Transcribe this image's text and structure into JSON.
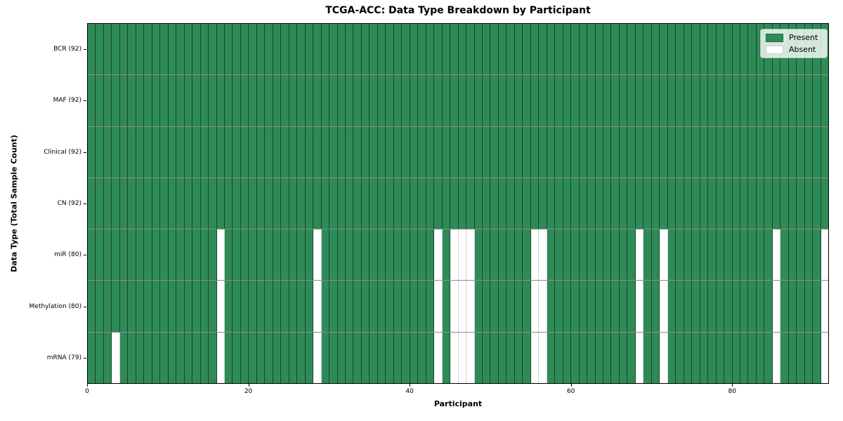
{
  "figure": {
    "title": "TCGA-ACC: Data Type Breakdown by Participant",
    "xlabel": "Participant",
    "ylabel": "Data Type (Total Sample Count)"
  },
  "legend": {
    "present_label": "Present",
    "absent_label": "Absent"
  },
  "colors": {
    "present": "#2E8B57",
    "absent": "#FFFFFF",
    "grid_line": "rgba(0,0,0,0.5)",
    "spine": "#000000"
  },
  "chart_data": {
    "type": "heatmap",
    "title": "TCGA-ACC: Data Type Breakdown by Participant",
    "xlabel": "Participant",
    "ylabel": "Data Type (Total Sample Count)",
    "n_participants": 92,
    "x_range": [
      0,
      92
    ],
    "x_ticks": [
      0,
      20,
      40,
      60,
      80
    ],
    "legend_entries": [
      "Present",
      "Absent"
    ],
    "legend_position": "upper right",
    "grid": true,
    "value_encoding": {
      "present": 1,
      "absent": 0
    },
    "rows": [
      {
        "label": "BCR (92)",
        "data_type": "BCR",
        "present_count": 92,
        "absent_participants": []
      },
      {
        "label": "MAF (92)",
        "data_type": "MAF",
        "present_count": 92,
        "absent_participants": []
      },
      {
        "label": "Clinical (92)",
        "data_type": "Clinical",
        "present_count": 92,
        "absent_participants": []
      },
      {
        "label": "CN (92)",
        "data_type": "CN",
        "present_count": 92,
        "absent_participants": []
      },
      {
        "label": "miR (80)",
        "data_type": "miR",
        "present_count": 80,
        "absent_participants": [
          16,
          28,
          43,
          45,
          46,
          47,
          55,
          56,
          68,
          71,
          85,
          91
        ]
      },
      {
        "label": "Methylation (80)",
        "data_type": "Methylation",
        "present_count": 80,
        "absent_participants": [
          16,
          28,
          43,
          45,
          46,
          47,
          55,
          56,
          68,
          71,
          85,
          91
        ]
      },
      {
        "label": "mRNA (79)",
        "data_type": "mRNA",
        "present_count": 79,
        "absent_participants": [
          3,
          16,
          28,
          43,
          45,
          46,
          47,
          55,
          56,
          68,
          71,
          85,
          91
        ]
      }
    ]
  }
}
